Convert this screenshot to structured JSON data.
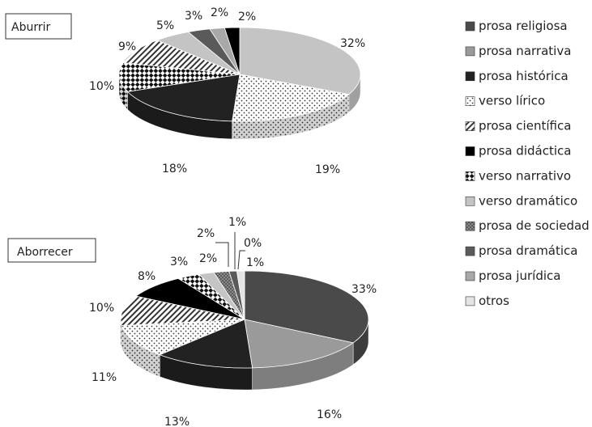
{
  "legend": [
    "prosa religiosa",
    "prosa narrativa",
    "prosa histórica",
    "verso lírico",
    "prosa científica",
    "prosa didáctica",
    "verso narrativo",
    "verso dramático",
    "prosa de sociedad",
    "prosa dramática",
    "prosa jurídica",
    "otros"
  ],
  "fills": [
    "#4a4a4a",
    "#9a9a9a",
    "#222222",
    "pattern-dots-sparse",
    "pattern-diagonal",
    "#000000",
    "pattern-checker",
    "#c4c4c4",
    "pattern-dots-dense",
    "#5a5a5a",
    "#a8a8a8",
    "#e4e4e4"
  ],
  "chart_data": [
    {
      "type": "pie",
      "title": "Aburrir",
      "slices": [
        {
          "category": "verso dramático",
          "value": 32,
          "label": "32%"
        },
        {
          "category": "verso lírico",
          "value": 19,
          "label": "19%"
        },
        {
          "category": "prosa histórica",
          "value": 18,
          "label": "18%"
        },
        {
          "category": "verso narrativo",
          "value": 10,
          "label": "10%"
        },
        {
          "category": "prosa científica",
          "value": 9,
          "label": "9%"
        },
        {
          "category": "verso dramático",
          "value": 5,
          "label": "5%"
        },
        {
          "category": "prosa dramática",
          "value": 3,
          "label": "3%"
        },
        {
          "category": "prosa jurídica",
          "value": 2,
          "label": "2%"
        },
        {
          "category": "prosa didáctica",
          "value": 2,
          "label": "2%"
        }
      ]
    },
    {
      "type": "pie",
      "title": "Aborrecer",
      "slices": [
        {
          "category": "prosa religiosa",
          "value": 33,
          "label": "33%"
        },
        {
          "category": "prosa narrativa",
          "value": 16,
          "label": "16%"
        },
        {
          "category": "prosa histórica",
          "value": 13,
          "label": "13%"
        },
        {
          "category": "verso lírico",
          "value": 11,
          "label": "11%"
        },
        {
          "category": "prosa científica",
          "value": 10,
          "label": "10%"
        },
        {
          "category": "prosa didáctica",
          "value": 8,
          "label": "8%"
        },
        {
          "category": "verso narrativo",
          "value": 3,
          "label": "3%"
        },
        {
          "category": "verso dramático",
          "value": 2,
          "label": "2%"
        },
        {
          "category": "prosa de sociedad",
          "value": 2,
          "label": "2%"
        },
        {
          "category": "prosa dramática",
          "value": 1,
          "label": "1%"
        },
        {
          "category": "prosa jurídica",
          "value": 0,
          "label": "0%"
        },
        {
          "category": "otros",
          "value": 1,
          "label": "1%"
        }
      ]
    }
  ]
}
